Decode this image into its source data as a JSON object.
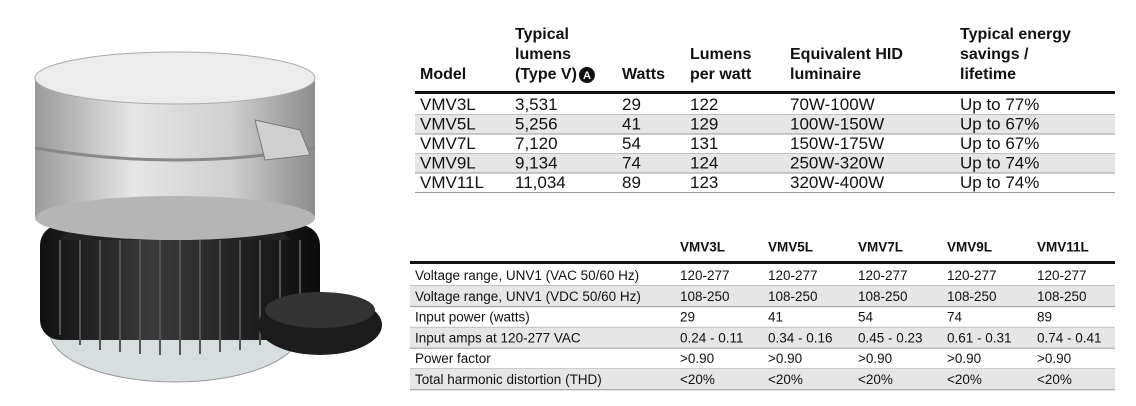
{
  "spec_table": {
    "header": [
      {
        "lines": [
          "Model"
        ]
      },
      {
        "lines": [
          "Typical",
          "lumens",
          "(Type V)"
        ],
        "note": "A"
      },
      {
        "lines": [
          "Watts"
        ]
      },
      {
        "lines": [
          "Lumens",
          "per watt"
        ]
      },
      {
        "lines": [
          "Equivalent HID",
          "luminaire"
        ]
      },
      {
        "lines": [
          "Typical energy",
          "savings /",
          "lifetime"
        ]
      }
    ],
    "rows": [
      [
        "VMV3L",
        "3,531",
        "29",
        "122",
        "70W-100W",
        "Up to 77%"
      ],
      [
        "VMV5L",
        "5,256",
        "41",
        "129",
        "100W-150W",
        "Up to 67%"
      ],
      [
        "VMV7L",
        "7,120",
        "54",
        "131",
        "150W-175W",
        "Up to 67%"
      ],
      [
        "VMV9L",
        "9,134",
        "74",
        "124",
        "250W-320W",
        "Up to 74%"
      ],
      [
        "VMV11L",
        "11,034",
        "89",
        "123",
        "320W-400W",
        "Up to 74%"
      ]
    ]
  },
  "electrical_table": {
    "header": [
      "VMV3L",
      "VMV5L",
      "VMV7L",
      "VMV9L",
      "VMV11L"
    ],
    "rows": [
      {
        "label": "Voltage range, UNV1 (VAC 50/60 Hz)",
        "values": [
          "120-277",
          "120-277",
          "120-277",
          "120-277",
          "120-277"
        ]
      },
      {
        "label": "Voltage range, UNV1 (VDC 50/60 Hz)",
        "values": [
          "108-250",
          "108-250",
          "108-250",
          "108-250",
          "108-250"
        ]
      },
      {
        "label": "Input power (watts)",
        "values": [
          "29",
          "41",
          "54",
          "74",
          "89"
        ]
      },
      {
        "label": "Input amps at 120-277 VAC",
        "values": [
          "0.24 - 0.11",
          "0.34 - 0.16",
          "0.45 - 0.23",
          "0.61 - 0.31",
          "0.74 - 0.41"
        ]
      },
      {
        "label": "Power factor",
        "values": [
          ">0.90",
          ">0.90",
          ">0.90",
          ">0.90",
          ">0.90"
        ]
      },
      {
        "label": "Total harmonic distortion (THD)",
        "values": [
          "<20%",
          "<20%",
          "<20%",
          "<20%",
          "<20%"
        ]
      }
    ]
  }
}
